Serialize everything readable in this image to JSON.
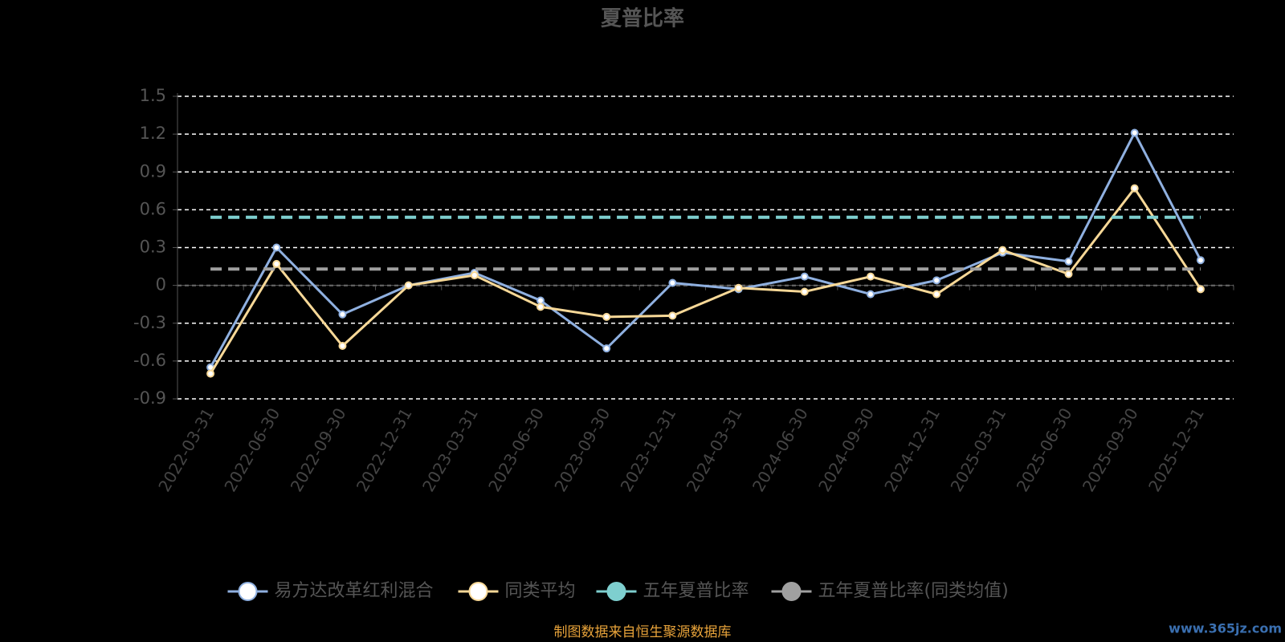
{
  "chart_data": {
    "type": "line",
    "title": "夏普比率",
    "categories": [
      "2022-03-31",
      "2022-06-30",
      "2022-09-30",
      "2022-12-31",
      "2023-03-31",
      "2023-06-30",
      "2023-09-30",
      "2023-12-31",
      "2024-03-31",
      "2024-06-30",
      "2024-09-30",
      "2024-12-31",
      "2025-03-31",
      "2025-06-30",
      "2025-09-30",
      "2025-12-31"
    ],
    "series": [
      {
        "name": "易方达改革红利混合",
        "color": "#8fb0e0",
        "values": [
          -0.65,
          0.3,
          -0.23,
          0.0,
          0.1,
          -0.12,
          -0.5,
          0.02,
          -0.03,
          0.07,
          -0.07,
          0.04,
          0.26,
          0.19,
          1.21,
          0.2
        ]
      },
      {
        "name": "同类平均",
        "color": "#f7d897",
        "values": [
          -0.7,
          0.17,
          -0.48,
          0.0,
          0.08,
          -0.17,
          -0.25,
          -0.24,
          -0.02,
          -0.05,
          0.07,
          -0.07,
          0.28,
          0.09,
          0.77,
          -0.03
        ]
      },
      {
        "name": "五年夏普比率",
        "color": "#7ecfcf",
        "value": 0.54
      },
      {
        "name": "五年夏普比率(同类均值)",
        "color": "#a0a0a0",
        "value": 0.13
      }
    ],
    "ylim": [
      -0.9,
      1.5
    ],
    "yticks": [
      -0.9,
      -0.6,
      -0.3,
      0,
      0.3,
      0.6,
      0.9,
      1.2,
      1.5
    ],
    "grid": true,
    "source": "制图数据来自恒生聚源数据库",
    "watermark": "www.365jz.com"
  }
}
